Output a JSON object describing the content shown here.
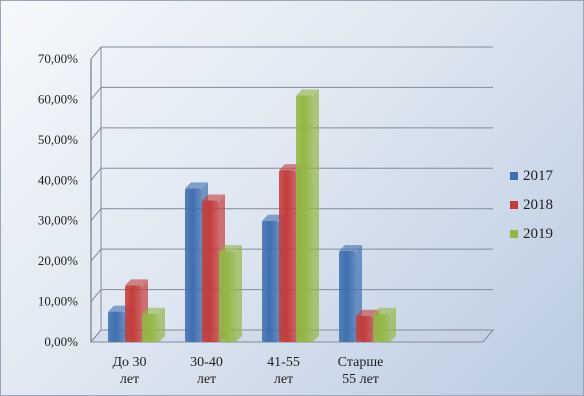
{
  "chart_data": {
    "type": "bar",
    "categories": [
      [
        "До 30",
        "лет"
      ],
      [
        "30-40",
        "лет"
      ],
      [
        "41-55",
        "лет"
      ],
      [
        "Старше",
        "55 лет"
      ]
    ],
    "series": [
      {
        "name": "2017",
        "values": [
          7.5,
          38.0,
          30.0,
          22.5
        ],
        "color": "#3f6fb0"
      },
      {
        "name": "2018",
        "values": [
          14.0,
          35.0,
          42.5,
          6.5
        ],
        "color": "#c43c3a"
      },
      {
        "name": "2019",
        "values": [
          7.0,
          22.5,
          61.0,
          7.0
        ],
        "color": "#93b744"
      }
    ],
    "yticks": [
      "0,00%",
      "10,00%",
      "20,00%",
      "30,00%",
      "40,00%",
      "50,00%",
      "60,00%",
      "70,00%"
    ],
    "ylim": [
      0,
      70
    ],
    "grid": true,
    "legend_position": "right",
    "title": "",
    "xlabel": "",
    "ylabel": ""
  }
}
